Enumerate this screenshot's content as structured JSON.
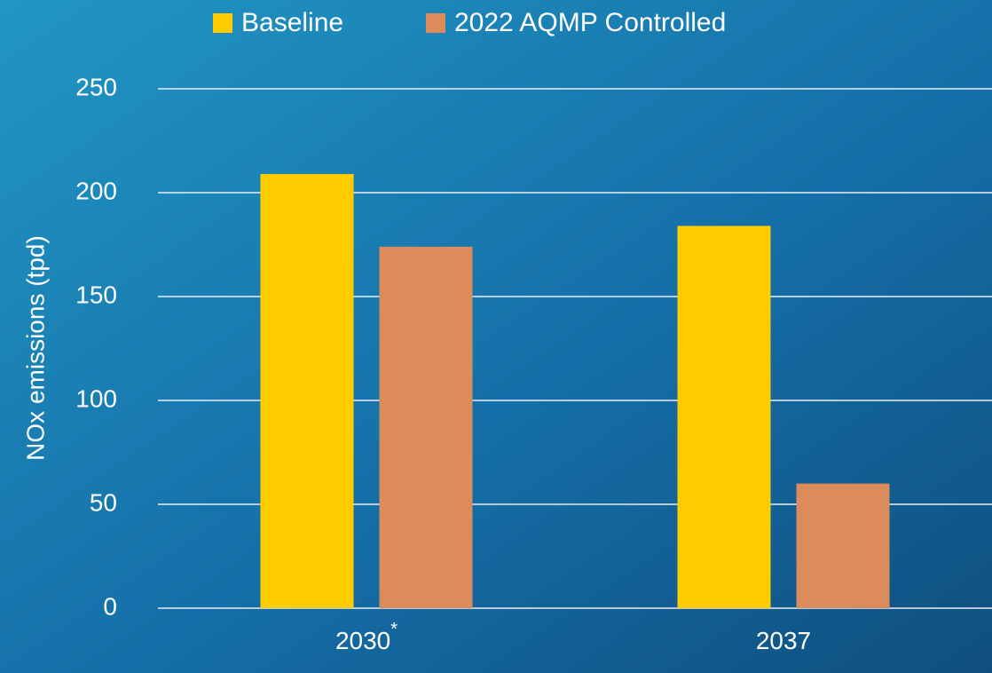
{
  "chart_data": {
    "type": "bar",
    "categories": [
      "2030",
      "2037"
    ],
    "category_marks": [
      "*",
      null
    ],
    "y_label": "NOx emissions (tpd)",
    "series": [
      {
        "name": "Baseline",
        "color": "#ffcc00",
        "values": [
          209,
          184
        ]
      },
      {
        "name": "2022 AQMP Controlled",
        "color": "#dc8b5b",
        "values": [
          174,
          60
        ]
      }
    ],
    "ylim": [
      0,
      250
    ],
    "yticks": [
      0,
      50,
      100,
      150,
      200,
      250
    ],
    "grid": true,
    "legend": "top"
  }
}
